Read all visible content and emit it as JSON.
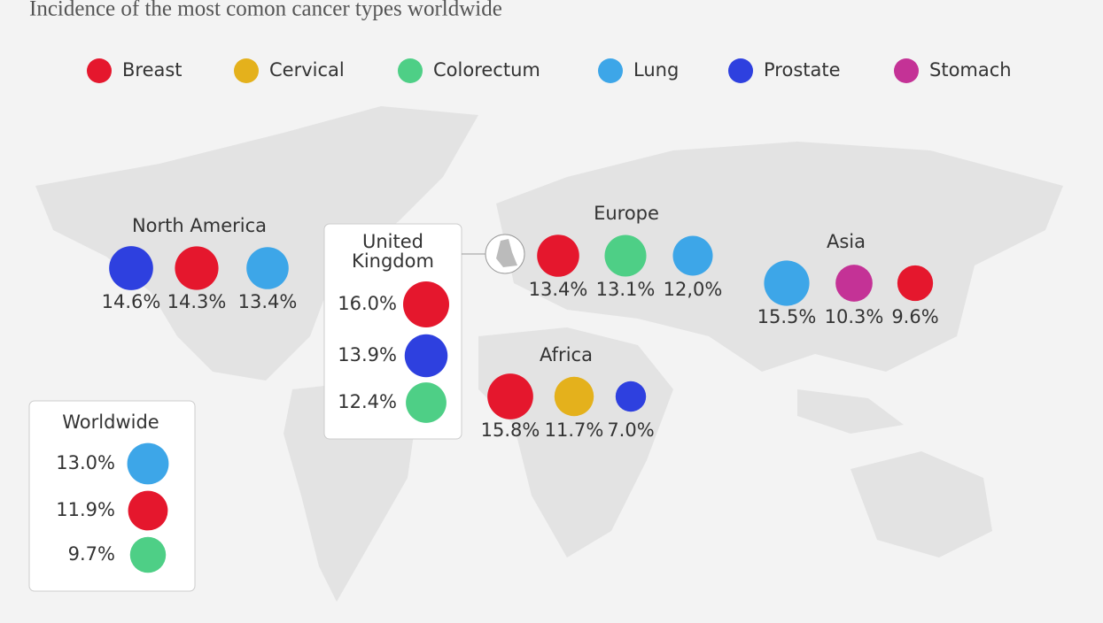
{
  "title": "Incidence of the most comon cancer types worldwide",
  "legend": [
    {
      "name": "Breast",
      "color": "#e5172d"
    },
    {
      "name": "Cervical",
      "color": "#e4b11c"
    },
    {
      "name": "Colorectum",
      "color": "#4ecf86"
    },
    {
      "name": "Lung",
      "color": "#3da6e8"
    },
    {
      "name": "Prostate",
      "color": "#2e40df"
    },
    {
      "name": "Stomach",
      "color": "#c43296"
    }
  ],
  "regions": [
    {
      "name": "North America",
      "cancers": [
        "Prostate",
        "Breast",
        "Lung"
      ],
      "values": [
        14.6,
        14.3,
        13.4
      ],
      "value_labels": [
        "14.6%",
        "14.3%",
        "13.4%"
      ]
    },
    {
      "name": "Europe",
      "cancers": [
        "Breast",
        "Colorectum",
        "Lung"
      ],
      "values": [
        13.4,
        13.1,
        12.0
      ],
      "value_labels": [
        "13.4%",
        "13.1%",
        "12,0%"
      ]
    },
    {
      "name": "Asia",
      "cancers": [
        "Lung",
        "Stomach",
        "Breast"
      ],
      "values": [
        15.5,
        10.3,
        9.6
      ],
      "value_labels": [
        "15.5%",
        "10.3%",
        "9.6%"
      ]
    },
    {
      "name": "Africa",
      "cancers": [
        "Breast",
        "Cervical",
        "Prostate"
      ],
      "values": [
        15.8,
        11.7,
        7.0
      ],
      "value_labels": [
        "15.8%",
        "11.7%",
        "7.0%"
      ]
    },
    {
      "name": "United Kingdom",
      "cancers": [
        "Breast",
        "Prostate",
        "Colorectum"
      ],
      "values": [
        16.0,
        13.9,
        12.4
      ],
      "value_labels": [
        "16.0%",
        "13.9%",
        "12.4%"
      ]
    },
    {
      "name": "Worldwide",
      "cancers": [
        "Lung",
        "Breast",
        "Colorectum"
      ],
      "values": [
        13.0,
        11.9,
        9.7
      ],
      "value_labels": [
        "13.0%",
        "11.9%",
        "9.7%"
      ]
    }
  ]
}
